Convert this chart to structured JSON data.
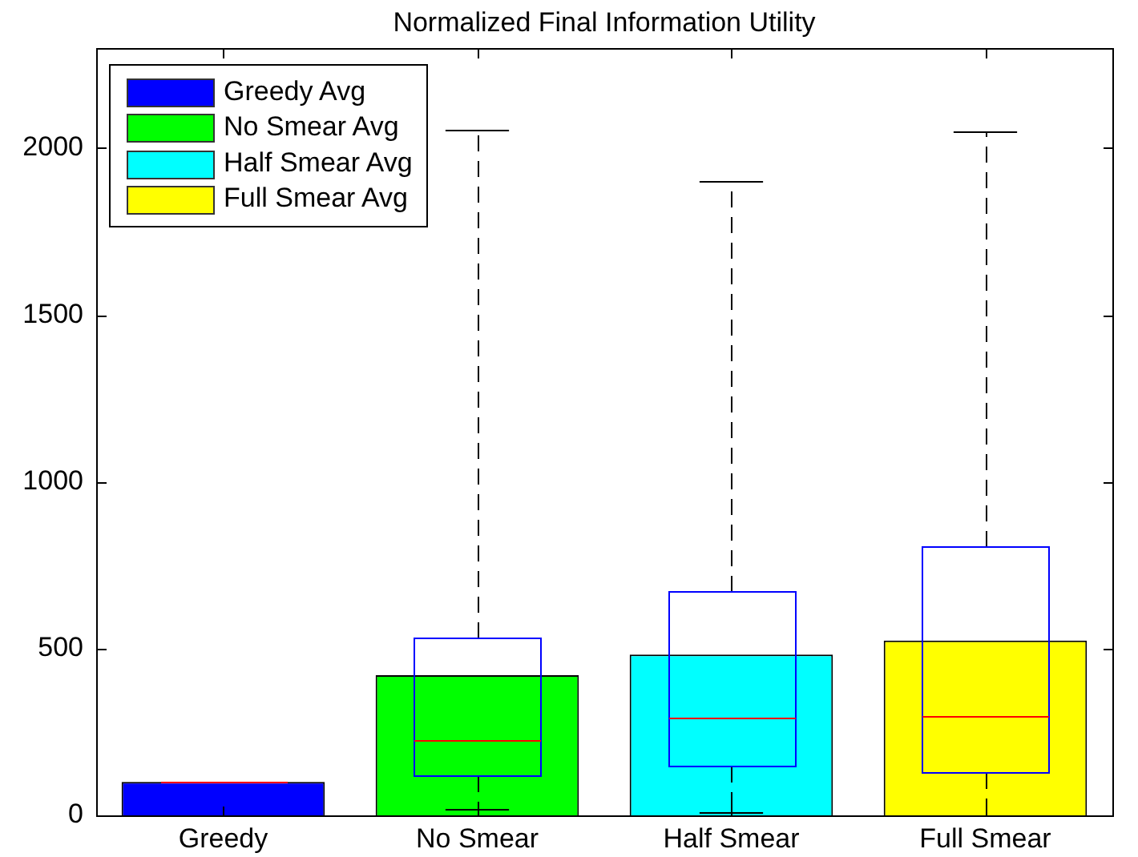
{
  "chart_data": {
    "type": "bar",
    "title": "Normalized Final Information Utility",
    "categories": [
      "Greedy",
      "No Smear",
      "Half Smear",
      "Full Smear"
    ],
    "series": [
      {
        "name": "Greedy Avg",
        "color": "#0000ff",
        "values": [
          100,
          null,
          null,
          null
        ]
      },
      {
        "name": "No Smear Avg",
        "color": "#00ff00",
        "values": [
          null,
          420,
          null,
          null
        ]
      },
      {
        "name": "Half Smear Avg",
        "color": "#00ffff",
        "values": [
          null,
          null,
          482,
          null
        ]
      },
      {
        "name": "Full Smear Avg",
        "color": "#ffff00",
        "values": [
          null,
          null,
          null,
          524
        ]
      },
      {
        "type": "box",
        "color": "#0000ff",
        "boxes": [
          {
            "low": 100,
            "q1": 100,
            "median": 100,
            "q3": 100,
            "high": 100
          },
          {
            "low": 20,
            "q1": 120,
            "median": 225,
            "q3": 535,
            "high": 2055
          },
          {
            "low": 8,
            "q1": 148,
            "median": 295,
            "q3": 670,
            "high": 1900
          },
          {
            "low": 0,
            "q1": 130,
            "median": 300,
            "q3": 805,
            "high": 2050
          }
        ]
      }
    ],
    "ylim": [
      0,
      2300
    ],
    "yticks": [
      0,
      500,
      1000,
      1500,
      2000
    ],
    "grid": false,
    "legend": "top left"
  }
}
